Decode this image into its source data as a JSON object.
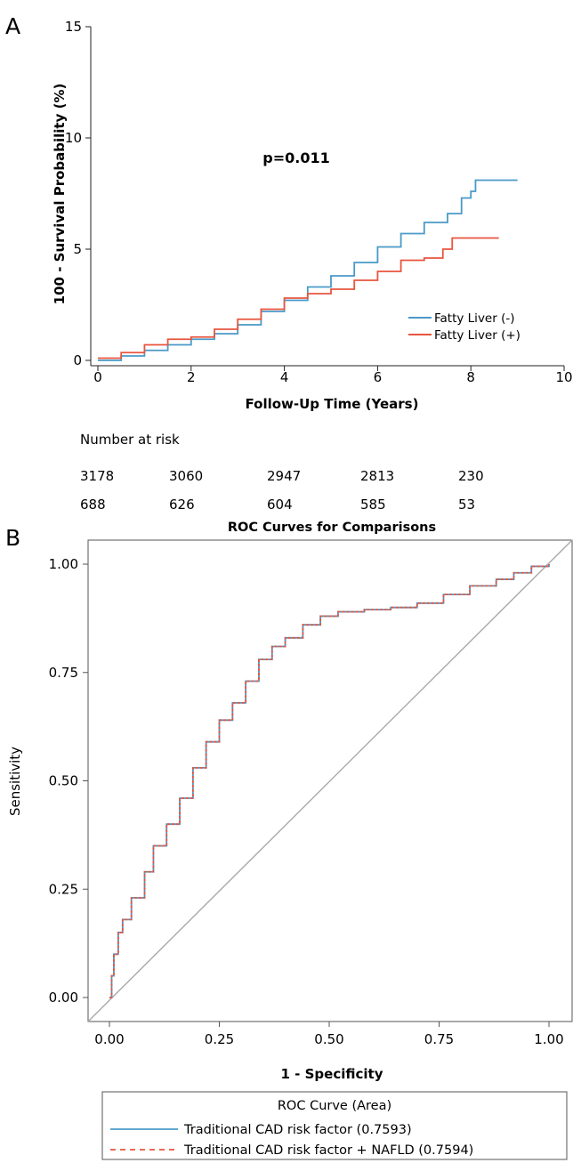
{
  "chart_data": [
    {
      "panel": "A",
      "type": "line",
      "xlabel": "Follow-Up Time (Years)",
      "ylabel": "100 - Survival Probability (%)",
      "xlim": [
        0,
        10
      ],
      "ylim": [
        0,
        15
      ],
      "xticks": [
        0,
        2,
        4,
        6,
        8,
        10
      ],
      "yticks": [
        0,
        5,
        10,
        15
      ],
      "annotation": "p=0.011",
      "legend_position": "bottom-right",
      "series": [
        {
          "name": "Fatty Liver (-)",
          "color": "#4a9ac8",
          "x": [
            0,
            0.5,
            1,
            1.5,
            2,
            2.5,
            3,
            3.5,
            4,
            4.5,
            5,
            5.5,
            6,
            6.5,
            7,
            7.5,
            7.8,
            8.0,
            8.1,
            9.0
          ],
          "y": [
            0,
            0.2,
            0.45,
            0.7,
            0.95,
            1.2,
            1.6,
            2.2,
            2.7,
            3.3,
            3.8,
            4.4,
            5.1,
            5.7,
            6.2,
            6.6,
            7.3,
            7.6,
            8.1,
            8.1
          ]
        },
        {
          "name": "Fatty Liver (+)",
          "color": "#e8553e",
          "x": [
            0,
            0.5,
            1,
            1.5,
            2,
            2.5,
            3,
            3.5,
            4,
            4.5,
            5,
            5.5,
            6,
            6.5,
            7,
            7.4,
            7.6,
            8.6
          ],
          "y": [
            0.1,
            0.35,
            0.7,
            0.95,
            1.05,
            1.4,
            1.85,
            2.3,
            2.8,
            3.0,
            3.2,
            3.6,
            4.0,
            4.5,
            4.6,
            5.0,
            5.5,
            5.5
          ]
        }
      ],
      "risk_table": {
        "title": "Number at risk",
        "rows": [
          [
            "3178",
            "3060",
            "2947",
            "2813",
            "230"
          ],
          [
            "688",
            "626",
            "604",
            "585",
            "53"
          ]
        ]
      }
    },
    {
      "panel": "B",
      "type": "line",
      "title": "ROC Curves for Comparisons",
      "xlabel": "1 - Specificity",
      "ylabel": "Sensitivity",
      "xlim": [
        0,
        1
      ],
      "ylim": [
        0,
        1
      ],
      "xticks": [
        "0.00",
        "0.25",
        "0.50",
        "0.75",
        "1.00"
      ],
      "yticks": [
        "0.00",
        "0.25",
        "0.50",
        "0.75",
        "1.00"
      ],
      "legend_title": "ROC Curve (Area)",
      "legend_position": "bottom",
      "reference_line": true,
      "series": [
        {
          "name": "Traditional CAD risk factor (0.7593)",
          "color": "#4a9ac8",
          "style": "solid",
          "x": [
            0,
            0.005,
            0.01,
            0.02,
            0.03,
            0.05,
            0.08,
            0.1,
            0.13,
            0.16,
            0.19,
            0.22,
            0.25,
            0.28,
            0.31,
            0.34,
            0.37,
            0.4,
            0.44,
            0.48,
            0.52,
            0.58,
            0.64,
            0.7,
            0.76,
            0.82,
            0.88,
            0.92,
            0.96,
            1.0
          ],
          "y": [
            0,
            0.05,
            0.1,
            0.15,
            0.18,
            0.23,
            0.29,
            0.35,
            0.4,
            0.46,
            0.53,
            0.59,
            0.64,
            0.68,
            0.73,
            0.78,
            0.81,
            0.83,
            0.86,
            0.88,
            0.89,
            0.895,
            0.9,
            0.91,
            0.93,
            0.95,
            0.965,
            0.98,
            0.995,
            1.0
          ]
        },
        {
          "name": "Traditional CAD risk factor + NAFLD (0.7594)",
          "color": "#e8553e",
          "style": "dashed",
          "x": [
            0,
            0.005,
            0.01,
            0.02,
            0.03,
            0.05,
            0.08,
            0.1,
            0.13,
            0.16,
            0.19,
            0.22,
            0.25,
            0.28,
            0.31,
            0.34,
            0.37,
            0.4,
            0.44,
            0.48,
            0.52,
            0.58,
            0.64,
            0.7,
            0.76,
            0.82,
            0.88,
            0.92,
            0.96,
            1.0
          ],
          "y": [
            0,
            0.05,
            0.1,
            0.15,
            0.18,
            0.23,
            0.29,
            0.35,
            0.4,
            0.46,
            0.53,
            0.59,
            0.64,
            0.68,
            0.73,
            0.78,
            0.81,
            0.83,
            0.86,
            0.88,
            0.89,
            0.895,
            0.9,
            0.91,
            0.93,
            0.95,
            0.965,
            0.98,
            0.995,
            1.0
          ]
        }
      ]
    }
  ]
}
